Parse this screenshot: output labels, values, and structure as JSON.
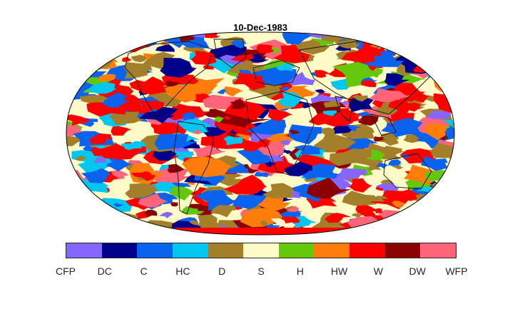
{
  "title": "10-Dec-1983",
  "map": {
    "projection": "robinson",
    "coastlines": true,
    "background_category": "S"
  },
  "legend": {
    "categories": [
      {
        "label": "CFP",
        "color": "#8566ff"
      },
      {
        "label": "DC",
        "color": "#00008b"
      },
      {
        "label": "C",
        "color": "#0a63ee"
      },
      {
        "label": "HC",
        "color": "#00c6f0"
      },
      {
        "label": "D",
        "color": "#a37f2a"
      },
      {
        "label": "S",
        "color": "#fffbc8"
      },
      {
        "label": "H",
        "color": "#64c80a"
      },
      {
        "label": "HW",
        "color": "#ff7d0a"
      },
      {
        "label": "W",
        "color": "#ff0000"
      },
      {
        "label": "DW",
        "color": "#8b0000"
      },
      {
        "label": "WFP",
        "color": "#ff6478"
      }
    ]
  }
}
